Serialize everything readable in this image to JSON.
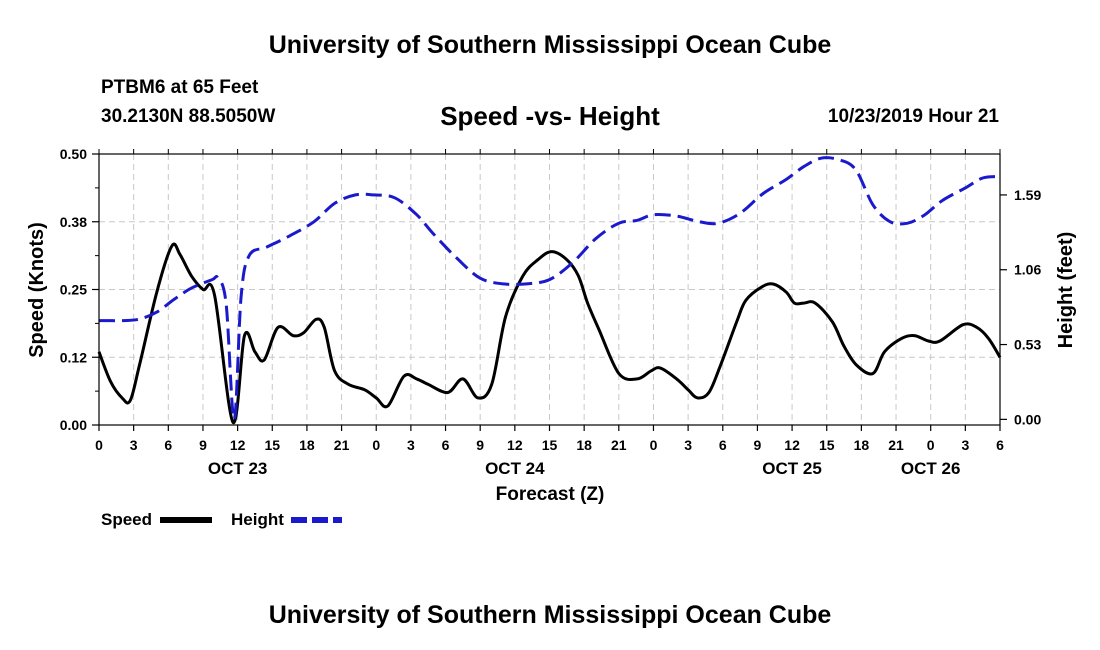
{
  "page": {
    "top_title": "University of Southern Mississippi Ocean Cube",
    "bottom_title": "University of Southern Mississippi Ocean Cube",
    "station_line": "PTBM6 at 65 Feet",
    "coords_line": "30.2130N 88.5050W",
    "date_line": "10/23/2019 Hour 21"
  },
  "chart_data": {
    "type": "line",
    "title": "Speed -vs- Height",
    "xlabel": "Forecast (Z)",
    "ylabel": "Speed (Knots)",
    "y2label": "Height (feet)",
    "x_range_hours": [
      0,
      78
    ],
    "ylim": [
      0,
      0.5
    ],
    "y2lim": [
      -0.04,
      1.88
    ],
    "y_ticks": [
      {
        "value": 0,
        "label": "0.00"
      },
      {
        "value": 0.125,
        "label": "0.12"
      },
      {
        "value": 0.25,
        "label": "0.25"
      },
      {
        "value": 0.375,
        "label": "0.38"
      },
      {
        "value": 0.5,
        "label": "0.50"
      }
    ],
    "y2_ticks": [
      {
        "value": 0,
        "label": "0.00"
      },
      {
        "value": 0.53,
        "label": "0.53"
      },
      {
        "value": 1.06,
        "label": "1.06"
      },
      {
        "value": 1.59,
        "label": "1.59"
      }
    ],
    "x_ticks": [
      "0",
      "3",
      "6",
      "9",
      "12",
      "15",
      "18",
      "21",
      "0",
      "3",
      "6",
      "9",
      "12",
      "15",
      "18",
      "21",
      "0",
      "3",
      "6",
      "9",
      "12",
      "15",
      "18",
      "21",
      "0",
      "3",
      "6"
    ],
    "day_labels": [
      {
        "hour": 12,
        "label": "OCT 23"
      },
      {
        "hour": 36,
        "label": "OCT 24"
      },
      {
        "hour": 60,
        "label": "OCT 25"
      },
      {
        "hour": 72,
        "label": "OCT 26"
      }
    ],
    "grid": true,
    "legend": {
      "position": "bottom-left",
      "entries": [
        "Speed",
        "Height"
      ]
    },
    "series": [
      {
        "name": "Speed",
        "axis": "left",
        "color": "#000000",
        "style": "solid",
        "x": [
          0,
          1,
          2,
          2.7,
          3.5,
          5,
          6.3,
          7,
          8,
          9,
          10,
          11.6,
          12.6,
          13.5,
          14.3,
          15.5,
          16.8,
          17.7,
          18.8,
          19.5,
          20.4,
          21.6,
          23,
          24,
          25,
          26.4,
          27.5,
          28.5,
          30.2,
          31.5,
          32.8,
          34,
          35.2,
          36.7,
          38,
          39.2,
          40.5,
          41.5,
          42.3,
          43.3,
          45,
          46.6,
          47.8,
          48.6,
          50,
          51,
          51.8,
          52.8,
          53.8,
          55.2,
          56,
          57.4,
          58.4,
          59.5,
          60.2,
          61,
          62,
          63.5,
          64.5,
          65.6,
          67,
          68,
          69.5,
          70.6,
          71.8,
          72.8,
          74.8,
          76,
          77,
          78
        ],
        "values": [
          0.135,
          0.08,
          0.05,
          0.045,
          0.11,
          0.245,
          0.33,
          0.315,
          0.275,
          0.25,
          0.24,
          0.005,
          0.165,
          0.135,
          0.12,
          0.18,
          0.165,
          0.17,
          0.195,
          0.18,
          0.1,
          0.075,
          0.065,
          0.05,
          0.035,
          0.09,
          0.085,
          0.075,
          0.06,
          0.085,
          0.05,
          0.075,
          0.2,
          0.275,
          0.305,
          0.32,
          0.305,
          0.275,
          0.225,
          0.175,
          0.095,
          0.085,
          0.1,
          0.105,
          0.085,
          0.065,
          0.05,
          0.06,
          0.11,
          0.19,
          0.23,
          0.255,
          0.26,
          0.245,
          0.225,
          0.225,
          0.225,
          0.19,
          0.145,
          0.11,
          0.095,
          0.135,
          0.16,
          0.165,
          0.155,
          0.155,
          0.185,
          0.18,
          0.16,
          0.125
        ]
      },
      {
        "name": "Height",
        "axis": "right",
        "color": "#1a1acc",
        "style": "dashed",
        "x": [
          0,
          2,
          3.5,
          5,
          6.5,
          8,
          9.8,
          10.3,
          11,
          11.7,
          12.3,
          13,
          14.5,
          16.5,
          18.6,
          20.4,
          22.2,
          23.8,
          25.6,
          27.5,
          29,
          31,
          33,
          35,
          37,
          39,
          41,
          43,
          45,
          46.6,
          48,
          50,
          52,
          53.6,
          55.5,
          57.5,
          59.5,
          61,
          62.5,
          64,
          65.5,
          67,
          68.5,
          70,
          71.5,
          73,
          75,
          76.5,
          78
        ],
        "values": [
          0.7,
          0.7,
          0.71,
          0.76,
          0.85,
          0.93,
          0.99,
          1.0,
          0.82,
          0.0,
          0.87,
          1.16,
          1.22,
          1.3,
          1.4,
          1.53,
          1.59,
          1.59,
          1.57,
          1.45,
          1.31,
          1.14,
          1.0,
          0.96,
          0.96,
          0.99,
          1.11,
          1.28,
          1.39,
          1.41,
          1.45,
          1.44,
          1.4,
          1.39,
          1.46,
          1.6,
          1.7,
          1.79,
          1.85,
          1.84,
          1.77,
          1.52,
          1.4,
          1.39,
          1.45,
          1.55,
          1.64,
          1.71,
          1.72
        ]
      }
    ]
  }
}
